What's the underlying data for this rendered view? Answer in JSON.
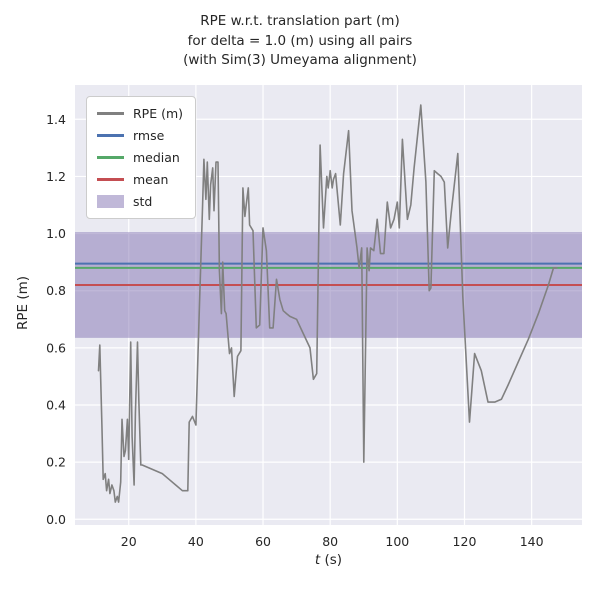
{
  "title": "RPE w.r.t. translation part (m)\nfor delta = 1.0 (m) using all pairs\n(with Sim(3) Umeyama alignment)",
  "axes": {
    "xlabel_var": "t",
    "xlabel_unit": " (s)",
    "ylabel": "RPE (m)"
  },
  "chart_data": {
    "type": "line",
    "title": "RPE w.r.t. translation part (m) for delta = 1.0 (m) using all pairs (with Sim(3) Umeyama alignment)",
    "xlabel": "t (s)",
    "ylabel": "RPE (m)",
    "xlim": [
      4,
      155
    ],
    "ylim": [
      -0.02,
      1.52
    ],
    "xticks": [
      20,
      40,
      60,
      80,
      100,
      120,
      140
    ],
    "yticks": [
      0.0,
      0.2,
      0.4,
      0.6,
      0.8,
      1.0,
      1.2,
      1.4
    ],
    "grid": true,
    "legend_position": "upper left",
    "stats": {
      "rmse": 0.895,
      "median": 0.88,
      "mean": 0.82,
      "std": 0.185,
      "std_band": [
        0.635,
        1.005
      ]
    },
    "colors": {
      "series": "#808080",
      "rmse": "#4c72b0",
      "median": "#55a868",
      "mean": "#c44e52",
      "std": "#8172b2",
      "plot_bg": "#eaeaf2",
      "grid": "#ffffff",
      "text": "#262626"
    },
    "legend": [
      {
        "label": "RPE (m)",
        "type": "line",
        "color": "#808080"
      },
      {
        "label": "rmse",
        "type": "line",
        "color": "#4c72b0"
      },
      {
        "label": "median",
        "type": "line",
        "color": "#55a868"
      },
      {
        "label": "mean",
        "type": "line",
        "color": "#c44e52"
      },
      {
        "label": "std",
        "type": "patch",
        "color": "#8172b2"
      }
    ],
    "series": [
      {
        "name": "RPE (m)",
        "color": "#808080",
        "points": [
          [
            11,
            0.52
          ],
          [
            11.4,
            0.61
          ],
          [
            12,
            0.33
          ],
          [
            12.4,
            0.14
          ],
          [
            13,
            0.16
          ],
          [
            13.4,
            0.1
          ],
          [
            14,
            0.14
          ],
          [
            14.4,
            0.09
          ],
          [
            15,
            0.12
          ],
          [
            15.6,
            0.1
          ],
          [
            16,
            0.06
          ],
          [
            16.6,
            0.08
          ],
          [
            17,
            0.06
          ],
          [
            17.6,
            0.13
          ],
          [
            18,
            0.35
          ],
          [
            18.6,
            0.22
          ],
          [
            19,
            0.24
          ],
          [
            19.6,
            0.35
          ],
          [
            20,
            0.21
          ],
          [
            20.6,
            0.62
          ],
          [
            21,
            0.29
          ],
          [
            21.6,
            0.12
          ],
          [
            22,
            0.37
          ],
          [
            22.6,
            0.62
          ],
          [
            23,
            0.42
          ],
          [
            23.6,
            0.19
          ],
          [
            24,
            0.19
          ],
          [
            26,
            0.18
          ],
          [
            28,
            0.17
          ],
          [
            30,
            0.16
          ],
          [
            32,
            0.14
          ],
          [
            34,
            0.12
          ],
          [
            36,
            0.1
          ],
          [
            37.6,
            0.1
          ],
          [
            38,
            0.34
          ],
          [
            39,
            0.36
          ],
          [
            40,
            0.33
          ],
          [
            41,
            0.72
          ],
          [
            42,
            1.1
          ],
          [
            42.4,
            1.26
          ],
          [
            43,
            1.12
          ],
          [
            43.4,
            1.25
          ],
          [
            44,
            1.05
          ],
          [
            44.4,
            1.17
          ],
          [
            45,
            1.23
          ],
          [
            45.4,
            1.08
          ],
          [
            46,
            1.25
          ],
          [
            46.6,
            1.25
          ],
          [
            47,
            0.87
          ],
          [
            47.6,
            0.72
          ],
          [
            48,
            0.9
          ],
          [
            48.6,
            0.73
          ],
          [
            49,
            0.72
          ],
          [
            50,
            0.58
          ],
          [
            50.6,
            0.6
          ],
          [
            51.4,
            0.43
          ],
          [
            52.4,
            0.57
          ],
          [
            53.4,
            0.59
          ],
          [
            54,
            1.16
          ],
          [
            54.6,
            1.06
          ],
          [
            55,
            1.1
          ],
          [
            55.6,
            1.16
          ],
          [
            56,
            1.03
          ],
          [
            57,
            1.01
          ],
          [
            58,
            0.67
          ],
          [
            59,
            0.68
          ],
          [
            60,
            1.02
          ],
          [
            61,
            0.94
          ],
          [
            62,
            0.67
          ],
          [
            63,
            0.67
          ],
          [
            64,
            0.84
          ],
          [
            65,
            0.77
          ],
          [
            66,
            0.73
          ],
          [
            67,
            0.72
          ],
          [
            68,
            0.71
          ],
          [
            70,
            0.7
          ],
          [
            72,
            0.65
          ],
          [
            74,
            0.6
          ],
          [
            75,
            0.49
          ],
          [
            76,
            0.51
          ],
          [
            77,
            1.31
          ],
          [
            78,
            1.02
          ],
          [
            79,
            1.2
          ],
          [
            79.4,
            1.16
          ],
          [
            80,
            1.22
          ],
          [
            80.6,
            1.16
          ],
          [
            81,
            1.19
          ],
          [
            81.6,
            1.21
          ],
          [
            82,
            1.16
          ],
          [
            83,
            1.03
          ],
          [
            84,
            1.21
          ],
          [
            85.5,
            1.36
          ],
          [
            86.5,
            1.08
          ],
          [
            88,
            0.95
          ],
          [
            88.6,
            0.88
          ],
          [
            89.4,
            0.95
          ],
          [
            90,
            0.2
          ],
          [
            91,
            0.95
          ],
          [
            91.6,
            0.87
          ],
          [
            92,
            0.95
          ],
          [
            93,
            0.94
          ],
          [
            94,
            1.05
          ],
          [
            95,
            0.93
          ],
          [
            96,
            0.93
          ],
          [
            97,
            1.11
          ],
          [
            98,
            1.02
          ],
          [
            99,
            1.05
          ],
          [
            100,
            1.11
          ],
          [
            100.6,
            1.02
          ],
          [
            101.5,
            1.33
          ],
          [
            103,
            1.05
          ],
          [
            104,
            1.1
          ],
          [
            105,
            1.23
          ],
          [
            107,
            1.45
          ],
          [
            108.5,
            1.18
          ],
          [
            109.5,
            0.8
          ],
          [
            110,
            0.81
          ],
          [
            111,
            1.22
          ],
          [
            112,
            1.21
          ],
          [
            113,
            1.2
          ],
          [
            114,
            1.18
          ],
          [
            115,
            0.95
          ],
          [
            116,
            1.07
          ],
          [
            118,
            1.28
          ],
          [
            119.5,
            0.78
          ],
          [
            121.5,
            0.34
          ],
          [
            123,
            0.58
          ],
          [
            125,
            0.52
          ],
          [
            127,
            0.41
          ],
          [
            129,
            0.41
          ],
          [
            131,
            0.42
          ],
          [
            133,
            0.47
          ],
          [
            136,
            0.55
          ],
          [
            139,
            0.63
          ],
          [
            142,
            0.72
          ],
          [
            145,
            0.82
          ],
          [
            146.5,
            0.88
          ],
          [
            147.5,
            0.88
          ]
        ]
      }
    ]
  }
}
